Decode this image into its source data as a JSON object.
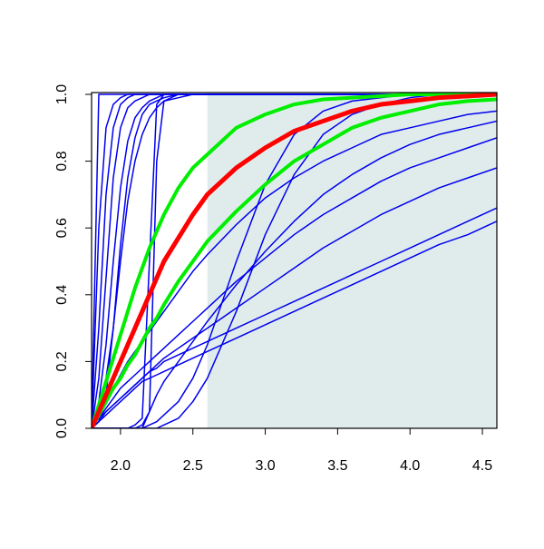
{
  "chart_data": {
    "type": "line",
    "x": [
      1.8,
      1.85,
      1.9,
      1.95,
      2.0,
      2.05,
      2.1,
      2.15,
      2.2,
      2.25,
      2.3,
      2.4,
      2.5,
      2.6,
      2.8,
      3.0,
      3.2,
      3.4,
      3.6,
      3.8,
      4.0,
      4.2,
      4.4,
      4.6
    ],
    "shaded_region": {
      "x": [
        2.6,
        4.6
      ],
      "color": "#e0ecec"
    },
    "series": [
      {
        "color": "#0000ee",
        "width": 1.5,
        "values": [
          0,
          1,
          1,
          1,
          1,
          1,
          1,
          1,
          1,
          1,
          1,
          1,
          1,
          1,
          1,
          1,
          1,
          1,
          1,
          1,
          1,
          1,
          1,
          1
        ]
      },
      {
        "color": "#0000ee",
        "width": 1.5,
        "values": [
          0,
          0.6,
          0.9,
          0.97,
          0.99,
          1,
          1,
          1,
          1,
          1,
          1,
          1,
          1,
          1,
          1,
          1,
          1,
          1,
          1,
          1,
          1,
          1,
          1,
          1
        ]
      },
      {
        "color": "#0000ee",
        "width": 1.5,
        "values": [
          0,
          0.3,
          0.7,
          0.9,
          0.97,
          0.99,
          1,
          1,
          1,
          1,
          1,
          1,
          1,
          1,
          1,
          1,
          1,
          1,
          1,
          1,
          1,
          1,
          1,
          1
        ]
      },
      {
        "color": "#0000ee",
        "width": 1.5,
        "values": [
          0,
          0.15,
          0.45,
          0.75,
          0.9,
          0.96,
          0.98,
          0.99,
          1,
          1,
          1,
          1,
          1,
          1,
          1,
          1,
          1,
          1,
          1,
          1,
          1,
          1,
          1,
          1
        ]
      },
      {
        "color": "#0000ee",
        "width": 1.5,
        "values": [
          0,
          0.08,
          0.25,
          0.5,
          0.72,
          0.86,
          0.93,
          0.96,
          0.98,
          0.99,
          1,
          1,
          1,
          1,
          1,
          1,
          1,
          1,
          1,
          1,
          1,
          1,
          1,
          1
        ]
      },
      {
        "color": "#0000ee",
        "width": 1.5,
        "values": [
          0,
          0.05,
          0.15,
          0.3,
          0.5,
          0.68,
          0.8,
          0.88,
          0.93,
          0.96,
          0.98,
          0.99,
          1,
          1,
          1,
          1,
          1,
          1,
          1,
          1,
          1,
          1,
          1,
          1
        ]
      },
      {
        "color": "#0000ee",
        "width": 1.5,
        "values": [
          0,
          0.02,
          0.1,
          0.3,
          0.55,
          0.75,
          0.87,
          0.94,
          0.97,
          0.98,
          0.99,
          1,
          1,
          1,
          1,
          1,
          1,
          1,
          1,
          1,
          1,
          1,
          1,
          1
        ]
      },
      {
        "color": "#0000ee",
        "width": 1.5,
        "values": [
          0,
          0,
          0,
          0,
          0,
          0,
          0.01,
          0.03,
          0.5,
          0.97,
          1,
          1,
          1,
          1,
          1,
          1,
          1,
          1,
          1,
          1,
          1,
          1,
          1,
          1
        ]
      },
      {
        "color": "#0000ee",
        "width": 1.5,
        "values": [
          0,
          0,
          0,
          0,
          0,
          0,
          0,
          0,
          0.05,
          0.8,
          0.98,
          1,
          1,
          1,
          1,
          1,
          1,
          1,
          1,
          1,
          1,
          1,
          1,
          1
        ]
      },
      {
        "color": "#0000ee",
        "width": 1.5,
        "values": [
          0,
          0,
          0,
          0,
          0,
          0,
          0,
          0,
          0.01,
          0.02,
          0.04,
          0.08,
          0.15,
          0.25,
          0.5,
          0.73,
          0.88,
          0.95,
          0.98,
          0.99,
          1,
          1,
          1,
          1
        ]
      },
      {
        "color": "#0000ee",
        "width": 1.5,
        "values": [
          0,
          0,
          0,
          0,
          0,
          0,
          0,
          0,
          0,
          0,
          0.01,
          0.03,
          0.08,
          0.15,
          0.35,
          0.58,
          0.76,
          0.88,
          0.94,
          0.97,
          0.99,
          1,
          1,
          1
        ]
      },
      {
        "color": "#0000ee",
        "width": 1.5,
        "values": [
          0,
          0,
          0,
          0,
          0,
          0,
          0,
          0.01,
          0.05,
          0.1,
          0.14,
          0.2,
          0.26,
          0.32,
          0.43,
          0.53,
          0.62,
          0.7,
          0.76,
          0.81,
          0.85,
          0.88,
          0.9,
          0.92
        ]
      },
      {
        "color": "#0000ee",
        "width": 1.5,
        "values": [
          0,
          0.02,
          0.04,
          0.06,
          0.08,
          0.1,
          0.12,
          0.14,
          0.15,
          0.16,
          0.17,
          0.19,
          0.21,
          0.23,
          0.27,
          0.31,
          0.35,
          0.39,
          0.43,
          0.47,
          0.51,
          0.55,
          0.58,
          0.62
        ]
      },
      {
        "color": "#0000ee",
        "width": 1.5,
        "values": [
          0,
          0.02,
          0.05,
          0.07,
          0.09,
          0.11,
          0.13,
          0.15,
          0.17,
          0.19,
          0.21,
          0.24,
          0.27,
          0.3,
          0.36,
          0.42,
          0.48,
          0.54,
          0.59,
          0.64,
          0.68,
          0.72,
          0.75,
          0.78
        ]
      },
      {
        "color": "#0000ee",
        "width": 1.5,
        "values": [
          0,
          0.03,
          0.06,
          0.09,
          0.12,
          0.14,
          0.16,
          0.18,
          0.2,
          0.22,
          0.24,
          0.28,
          0.32,
          0.36,
          0.44,
          0.51,
          0.58,
          0.64,
          0.69,
          0.74,
          0.78,
          0.81,
          0.84,
          0.87
        ]
      },
      {
        "color": "#0000ee",
        "width": 1.5,
        "values": [
          0,
          0.04,
          0.08,
          0.12,
          0.16,
          0.2,
          0.23,
          0.26,
          0.29,
          0.32,
          0.35,
          0.41,
          0.47,
          0.52,
          0.61,
          0.69,
          0.75,
          0.8,
          0.84,
          0.88,
          0.9,
          0.92,
          0.94,
          0.95
        ]
      },
      {
        "color": "#0000ee",
        "width": 1.5,
        "values": [
          0,
          0.03,
          0.05,
          0.07,
          0.09,
          0.11,
          0.13,
          0.15,
          0.17,
          0.18,
          0.2,
          0.22,
          0.24,
          0.26,
          0.3,
          0.34,
          0.38,
          0.42,
          0.46,
          0.5,
          0.54,
          0.58,
          0.62,
          0.66
        ]
      },
      {
        "color": "#00ee00",
        "width": 4,
        "values": [
          0,
          0.07,
          0.14,
          0.21,
          0.28,
          0.35,
          0.42,
          0.48,
          0.54,
          0.59,
          0.64,
          0.72,
          0.78,
          0.82,
          0.9,
          0.94,
          0.97,
          0.985,
          0.99,
          0.995,
          1,
          1,
          1,
          1
        ]
      },
      {
        "color": "#00ee00",
        "width": 4,
        "values": [
          0,
          0.04,
          0.08,
          0.12,
          0.15,
          0.19,
          0.22,
          0.26,
          0.3,
          0.33,
          0.37,
          0.44,
          0.5,
          0.56,
          0.65,
          0.73,
          0.8,
          0.85,
          0.9,
          0.93,
          0.95,
          0.97,
          0.98,
          0.985
        ]
      },
      {
        "color": "#ff0000",
        "width": 5,
        "values": [
          0,
          0.05,
          0.1,
          0.15,
          0.2,
          0.25,
          0.3,
          0.35,
          0.4,
          0.45,
          0.5,
          0.57,
          0.64,
          0.7,
          0.78,
          0.84,
          0.89,
          0.92,
          0.95,
          0.97,
          0.98,
          0.99,
          0.995,
          1
        ]
      }
    ],
    "xlim": [
      1.8,
      4.6
    ],
    "ylim": [
      0,
      1
    ],
    "xticks": [
      {
        "value": 2,
        "label": "2.0"
      },
      2.5,
      {
        "value": 3,
        "label": "3.0"
      },
      3.5,
      {
        "value": 4,
        "label": "4.0"
      },
      4.5
    ],
    "yticks": [
      {
        "value": 0,
        "label": "0.0"
      },
      0.2,
      0.4,
      0.6,
      0.8,
      {
        "value": 1,
        "label": "1.0"
      }
    ]
  }
}
